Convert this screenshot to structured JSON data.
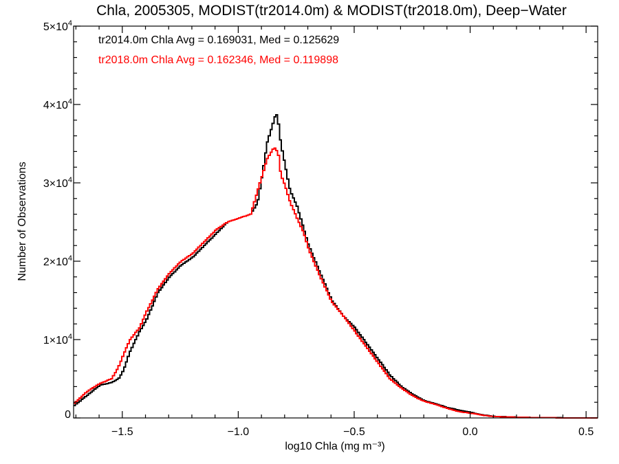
{
  "chart_data": {
    "type": "line",
    "title": "Chla, 2005305, MODIST(tr2014.0m) & MODIST(tr2018.0m), Deep−Water",
    "xlabel": "log10 Chla (mg m⁻³)",
    "ylabel": "Number of Observations",
    "xlim": [
      -1.71,
      0.55
    ],
    "ylim": [
      0,
      50000
    ],
    "x_ticks": [
      {
        "value": -1.5,
        "label": "−1.5"
      },
      {
        "value": -1.0,
        "label": "−1.0"
      },
      {
        "value": -0.5,
        "label": "−0.5"
      },
      {
        "value": 0.0,
        "label": "0.0"
      },
      {
        "value": 0.5,
        "label": "0.5"
      }
    ],
    "y_ticks": [
      {
        "value": 0,
        "mant": "0",
        "exp": ""
      },
      {
        "value": 10000,
        "mant": "1×10",
        "exp": "4"
      },
      {
        "value": 20000,
        "mant": "2×10",
        "exp": "4"
      },
      {
        "value": 30000,
        "mant": "3×10",
        "exp": "4"
      },
      {
        "value": 40000,
        "mant": "4×10",
        "exp": "4"
      },
      {
        "value": 50000,
        "mant": "5×10",
        "exp": "4"
      }
    ],
    "annotations": [
      {
        "text": "tr2014.0m Chla Avg = 0.169031, Med = 0.125629",
        "color": "#000000"
      },
      {
        "text": "tr2018.0m Chla Avg = 0.162346, Med = 0.119898",
        "color": "#ff0000"
      }
    ],
    "series": [
      {
        "color": "#000000",
        "points": [
          [
            -1.71,
            1600
          ],
          [
            -1.65,
            3000
          ],
          [
            -1.6,
            4200
          ],
          [
            -1.55,
            4500
          ],
          [
            -1.52,
            5000
          ],
          [
            -1.5,
            6000
          ],
          [
            -1.47,
            8500
          ],
          [
            -1.43,
            11000
          ],
          [
            -1.4,
            12500
          ],
          [
            -1.35,
            16000
          ],
          [
            -1.3,
            18000
          ],
          [
            -1.25,
            19500
          ],
          [
            -1.2,
            20500
          ],
          [
            -1.15,
            22000
          ],
          [
            -1.1,
            23500
          ],
          [
            -1.05,
            25000
          ],
          [
            -1.0,
            25500
          ],
          [
            -0.95,
            26000
          ],
          [
            -0.92,
            27500
          ],
          [
            -0.9,
            31000
          ],
          [
            -0.88,
            35000
          ],
          [
            -0.86,
            37000
          ],
          [
            -0.85,
            38000
          ],
          [
            -0.84,
            39000
          ],
          [
            -0.83,
            37500
          ],
          [
            -0.82,
            35000
          ],
          [
            -0.8,
            32000
          ],
          [
            -0.78,
            29000
          ],
          [
            -0.75,
            27000
          ],
          [
            -0.72,
            24000
          ],
          [
            -0.7,
            22000
          ],
          [
            -0.65,
            18500
          ],
          [
            -0.6,
            15000
          ],
          [
            -0.55,
            13000
          ],
          [
            -0.5,
            11500
          ],
          [
            -0.45,
            9500
          ],
          [
            -0.4,
            7500
          ],
          [
            -0.35,
            5500
          ],
          [
            -0.3,
            4000
          ],
          [
            -0.25,
            3000
          ],
          [
            -0.2,
            2200
          ],
          [
            -0.15,
            1800
          ],
          [
            -0.1,
            1300
          ],
          [
            -0.05,
            1000
          ],
          [
            0.0,
            700
          ],
          [
            0.05,
            400
          ],
          [
            0.1,
            200
          ],
          [
            0.2,
            100
          ],
          [
            0.3,
            40
          ],
          [
            0.4,
            20
          ],
          [
            0.55,
            5
          ]
        ]
      },
      {
        "color": "#ff0000",
        "points": [
          [
            -1.71,
            1900
          ],
          [
            -1.65,
            3500
          ],
          [
            -1.6,
            4400
          ],
          [
            -1.55,
            5000
          ],
          [
            -1.52,
            6500
          ],
          [
            -1.5,
            8000
          ],
          [
            -1.47,
            10000
          ],
          [
            -1.43,
            11500
          ],
          [
            -1.4,
            13500
          ],
          [
            -1.35,
            16500
          ],
          [
            -1.3,
            18500
          ],
          [
            -1.25,
            20000
          ],
          [
            -1.2,
            21000
          ],
          [
            -1.15,
            22500
          ],
          [
            -1.1,
            24000
          ],
          [
            -1.05,
            25000
          ],
          [
            -1.0,
            25500
          ],
          [
            -0.95,
            26000
          ],
          [
            -0.92,
            29000
          ],
          [
            -0.9,
            31000
          ],
          [
            -0.88,
            33000
          ],
          [
            -0.86,
            34000
          ],
          [
            -0.85,
            34500
          ],
          [
            -0.84,
            34300
          ],
          [
            -0.83,
            33500
          ],
          [
            -0.82,
            31000
          ],
          [
            -0.8,
            29500
          ],
          [
            -0.78,
            27500
          ],
          [
            -0.75,
            25500
          ],
          [
            -0.72,
            23500
          ],
          [
            -0.7,
            21500
          ],
          [
            -0.65,
            18000
          ],
          [
            -0.6,
            14800
          ],
          [
            -0.55,
            13000
          ],
          [
            -0.5,
            11000
          ],
          [
            -0.45,
            9000
          ],
          [
            -0.4,
            7000
          ],
          [
            -0.35,
            5000
          ],
          [
            -0.3,
            3800
          ],
          [
            -0.25,
            2800
          ],
          [
            -0.2,
            2100
          ],
          [
            -0.15,
            1700
          ],
          [
            -0.1,
            1200
          ],
          [
            -0.05,
            800
          ],
          [
            0.0,
            600
          ],
          [
            0.05,
            350
          ],
          [
            0.1,
            180
          ],
          [
            0.2,
            90
          ],
          [
            0.3,
            35
          ],
          [
            0.4,
            15
          ],
          [
            0.55,
            5
          ]
        ]
      }
    ]
  }
}
